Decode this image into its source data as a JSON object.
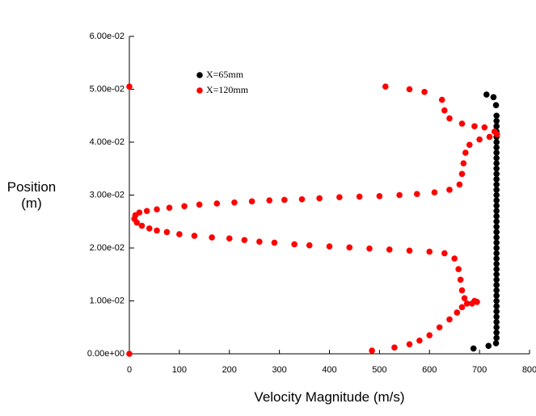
{
  "chart_data": {
    "type": "scatter",
    "xlabel": "Velocity Magnitude (m/s)",
    "ylabel": "Position (m)",
    "xlim": [
      0,
      800
    ],
    "xticks": [
      0,
      100,
      200,
      300,
      400,
      500,
      600,
      700,
      800
    ],
    "ylim": [
      0,
      0.06
    ],
    "yticks": [
      {
        "value": 0,
        "label": "0.00e+00"
      },
      {
        "value": 0.01,
        "label": "1.00e-02"
      },
      {
        "value": 0.02,
        "label": "2.00e-02"
      },
      {
        "value": 0.03,
        "label": "3.00e-02"
      },
      {
        "value": 0.04,
        "label": "4.00e-02"
      },
      {
        "value": 0.05,
        "label": "5.00e-02"
      },
      {
        "value": 0.06,
        "label": "6.00e-02"
      }
    ],
    "series": [
      {
        "name": "X=65mm",
        "color": "#000000",
        "x": [
          688,
          718,
          733,
          734,
          734,
          734,
          734,
          734,
          734,
          734,
          734,
          734,
          734,
          734,
          734,
          734,
          734,
          734,
          734,
          734,
          734,
          734,
          734,
          734,
          734,
          734,
          734,
          734,
          734,
          734,
          734,
          734,
          734,
          734,
          734,
          734,
          734,
          734,
          734,
          734,
          734,
          734,
          734,
          734,
          734,
          734,
          733,
          728,
          714
        ],
        "y": [
          0.001,
          0.0015,
          0.002,
          0.003,
          0.004,
          0.005,
          0.006,
          0.007,
          0.008,
          0.009,
          0.01,
          0.011,
          0.012,
          0.013,
          0.014,
          0.015,
          0.016,
          0.017,
          0.018,
          0.019,
          0.02,
          0.021,
          0.022,
          0.023,
          0.024,
          0.025,
          0.026,
          0.027,
          0.028,
          0.029,
          0.03,
          0.031,
          0.032,
          0.033,
          0.034,
          0.035,
          0.036,
          0.037,
          0.038,
          0.039,
          0.04,
          0.041,
          0.042,
          0.043,
          0.044,
          0.045,
          0.047,
          0.0485,
          0.049
        ]
      },
      {
        "name": "X=120mm",
        "color": "#ff0000",
        "x": [
          0,
          0,
          485,
          530,
          560,
          580,
          600,
          620,
          640,
          655,
          665,
          675,
          690,
          695,
          685,
          670,
          665,
          662,
          658,
          650,
          630,
          600,
          560,
          520,
          480,
          440,
          400,
          360,
          330,
          290,
          260,
          230,
          200,
          165,
          130,
          100,
          75,
          55,
          40,
          25,
          15,
          10,
          12,
          20,
          35,
          55,
          80,
          110,
          140,
          175,
          210,
          245,
          280,
          310,
          345,
          380,
          420,
          460,
          500,
          540,
          575,
          610,
          640,
          660,
          665,
          668,
          672,
          680,
          700,
          720,
          735,
          730,
          710,
          690,
          665,
          640,
          630,
          625,
          590,
          560,
          512
        ],
        "y": [
          0,
          0.0505,
          0.0006,
          0.0012,
          0.0018,
          0.0025,
          0.0035,
          0.005,
          0.0065,
          0.0078,
          0.0088,
          0.0095,
          0.01,
          0.0098,
          0.0095,
          0.0105,
          0.012,
          0.014,
          0.016,
          0.018,
          0.019,
          0.0193,
          0.0195,
          0.0197,
          0.0199,
          0.0201,
          0.0203,
          0.0205,
          0.0207,
          0.021,
          0.0212,
          0.0215,
          0.0218,
          0.022,
          0.0223,
          0.0226,
          0.023,
          0.0233,
          0.0237,
          0.0242,
          0.0248,
          0.0255,
          0.0262,
          0.0267,
          0.027,
          0.0273,
          0.0276,
          0.0279,
          0.0282,
          0.0284,
          0.0286,
          0.0288,
          0.029,
          0.0291,
          0.0292,
          0.0294,
          0.0296,
          0.0297,
          0.0298,
          0.03,
          0.0302,
          0.0305,
          0.031,
          0.032,
          0.034,
          0.036,
          0.038,
          0.0395,
          0.0405,
          0.041,
          0.0415,
          0.042,
          0.0428,
          0.043,
          0.0435,
          0.0445,
          0.046,
          0.048,
          0.0495,
          0.05,
          0.0505
        ]
      }
    ]
  }
}
